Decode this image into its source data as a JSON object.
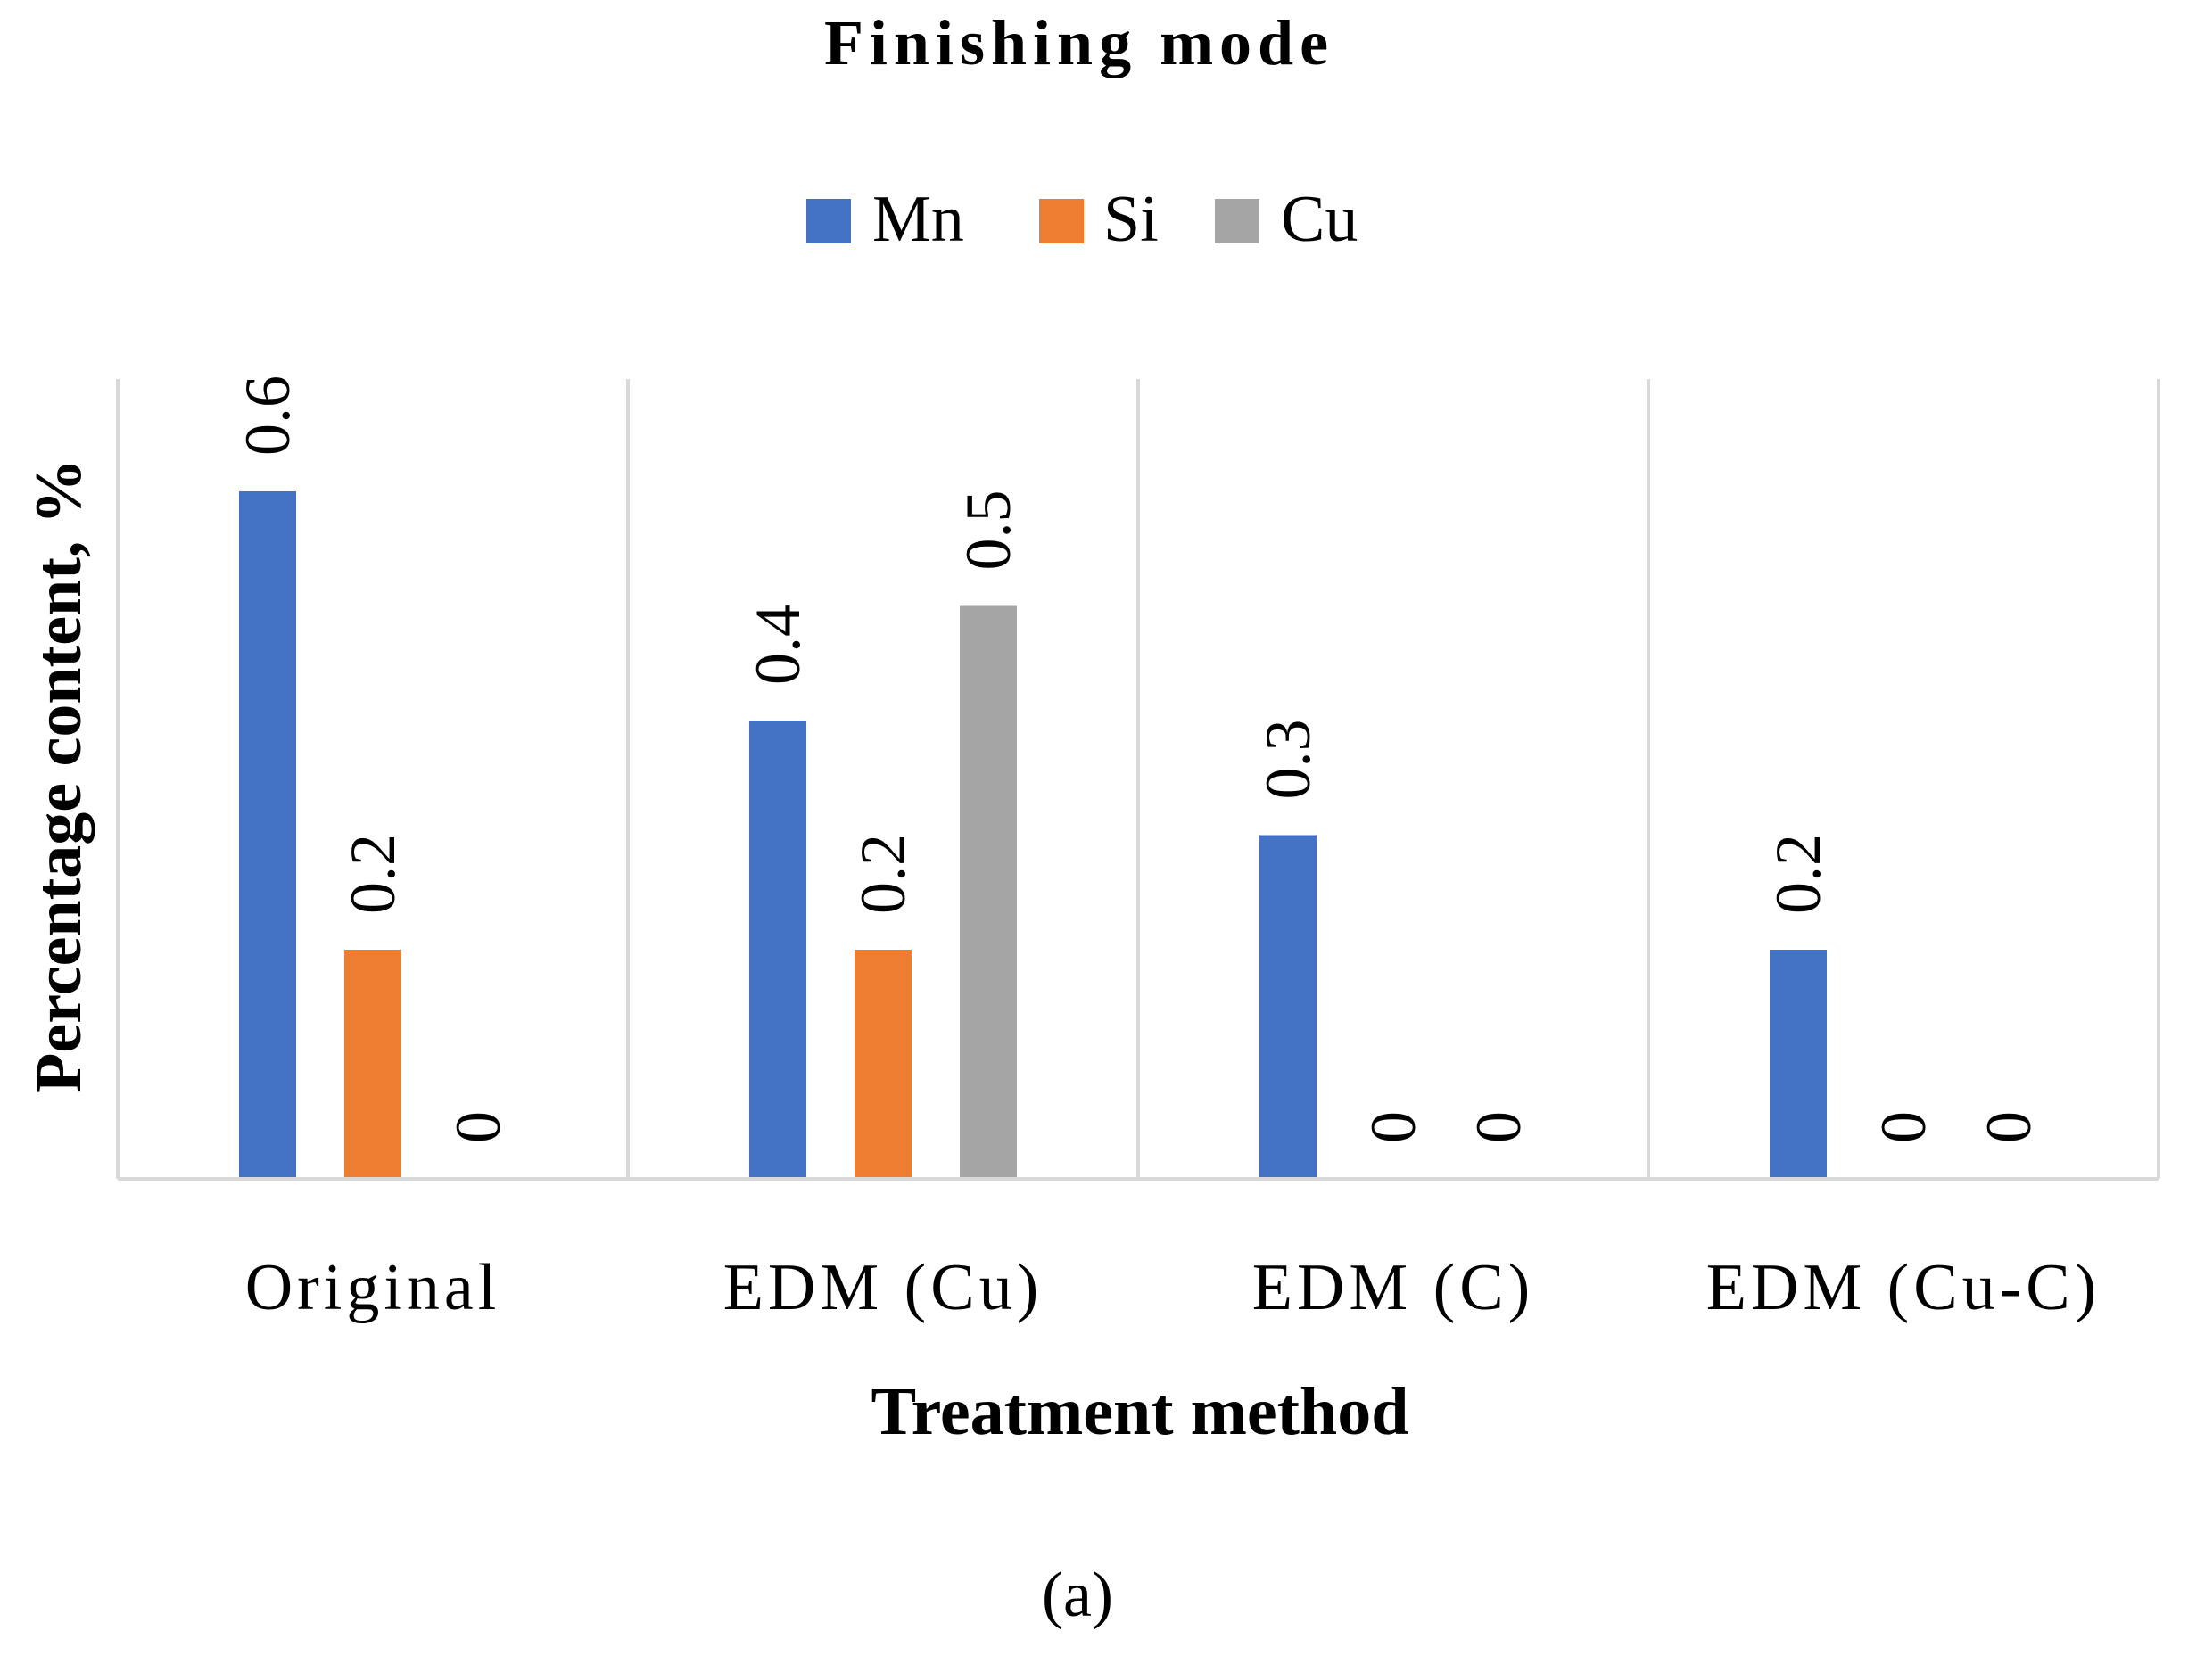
{
  "chart_data": {
    "type": "bar",
    "title": "Finishing mode",
    "xlabel": "Treatment method",
    "ylabel": "Percentage content, %",
    "categories": [
      "Original",
      "EDM (Cu)",
      "EDM (C)",
      "EDM (Cu-C)"
    ],
    "series": [
      {
        "name": "Mn",
        "color": "#4472C4",
        "values": [
          0.6,
          0.4,
          0.3,
          0.2
        ]
      },
      {
        "name": "Si",
        "color": "#ED7D31",
        "values": [
          0.2,
          0.2,
          0,
          0
        ]
      },
      {
        "name": "Cu",
        "color": "#A5A5A5",
        "values": [
          0,
          0.5,
          0,
          0
        ]
      }
    ],
    "data_labels": [
      [
        "0.6",
        "0.4",
        "0.3",
        "0.2"
      ],
      [
        "0.2",
        "0.2",
        "0",
        "0"
      ],
      [
        "0",
        "0.5",
        "0",
        "0"
      ]
    ],
    "ylim": [
      0,
      0.7
    ],
    "legend_position": "top-center",
    "grid": "vertical category separators",
    "caption": "(a)"
  }
}
